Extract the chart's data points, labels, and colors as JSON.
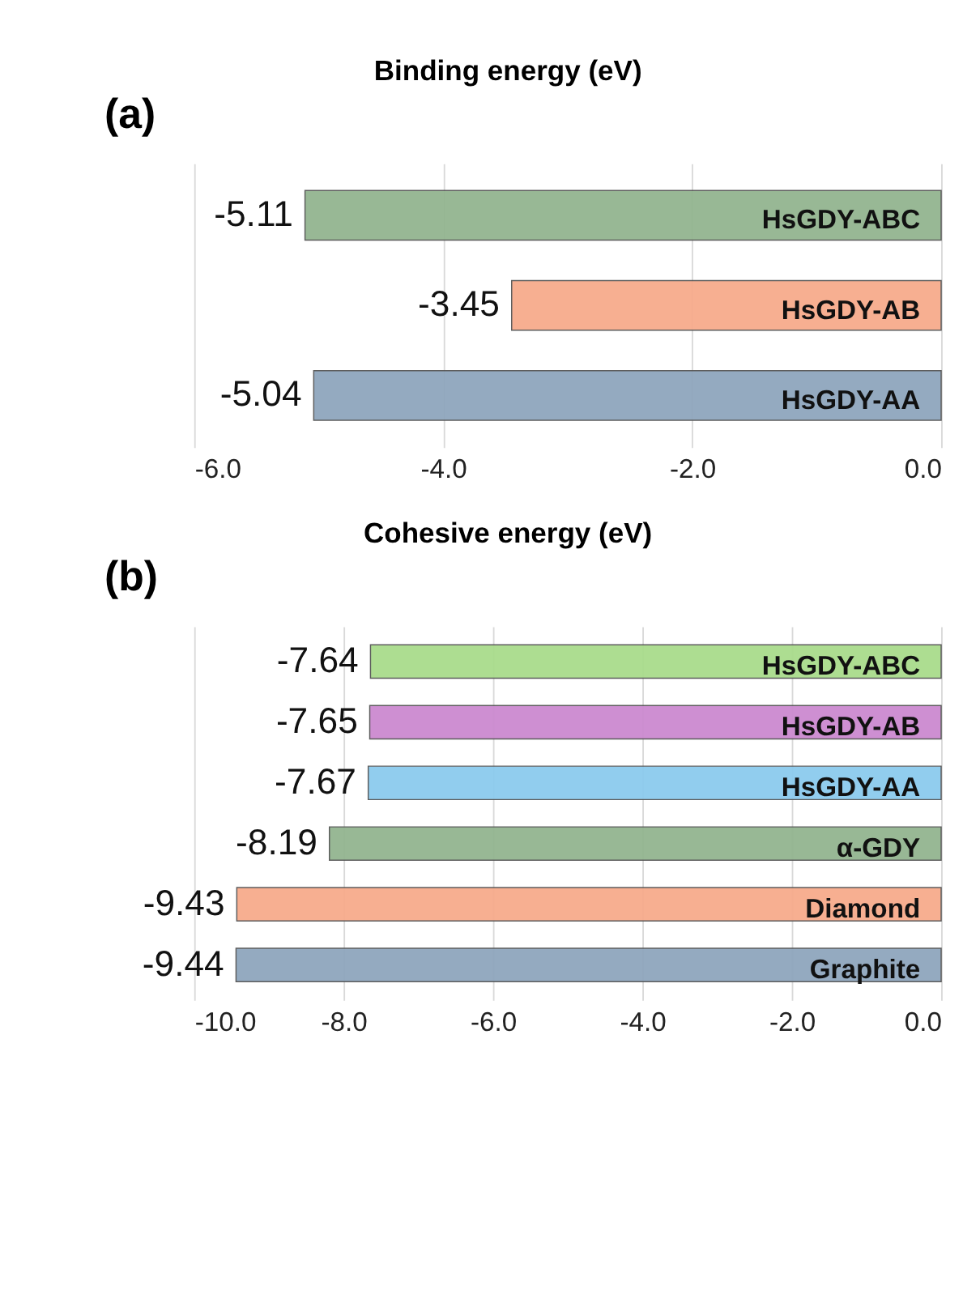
{
  "chart_data": [
    {
      "type": "bar",
      "orientation": "horizontal",
      "title": "Binding energy (eV)",
      "annotations": [
        "(a)"
      ],
      "categories": [
        "HsGDY-ABC",
        "HsGDY-AB",
        "HsGDY-AA"
      ],
      "values": [
        -5.11,
        -3.45,
        -5.04
      ],
      "colors": [
        "#93b590",
        "#f7ab8c",
        "#8fa6bd"
      ],
      "xlim": [
        -6.0,
        0.0
      ],
      "xticks": [
        {
          "value": -6,
          "label": "-6.0"
        },
        {
          "value": -4,
          "label": "-4.0"
        },
        {
          "value": -2,
          "label": "-2.0"
        },
        {
          "value": 0,
          "label": "0.0"
        }
      ],
      "grid": "x",
      "data_labels": true
    },
    {
      "type": "bar",
      "orientation": "horizontal",
      "title": "Cohesive energy (eV)",
      "annotations": [
        "(b)"
      ],
      "categories": [
        "HsGDY-ABC",
        "HsGDY-AB",
        "HsGDY-AA",
        "α-GDY",
        "Diamond",
        "Graphite"
      ],
      "values": [
        -7.64,
        -7.65,
        -7.67,
        -8.19,
        -9.43,
        -9.44
      ],
      "colors": [
        "#a9dc8c",
        "#cc8ad0",
        "#8ccbee",
        "#93b590",
        "#f7ab8c",
        "#8fa6bd"
      ],
      "xlim": [
        -10.0,
        0.0
      ],
      "xticks": [
        {
          "value": -10,
          "label": "-10.0"
        },
        {
          "value": -8,
          "label": "-8.0"
        },
        {
          "value": -6,
          "label": "-6.0"
        },
        {
          "value": -4,
          "label": "-4.0"
        },
        {
          "value": -2,
          "label": "-2.0"
        },
        {
          "value": 0,
          "label": "0.0"
        }
      ],
      "grid": "x",
      "data_labels": true
    }
  ]
}
